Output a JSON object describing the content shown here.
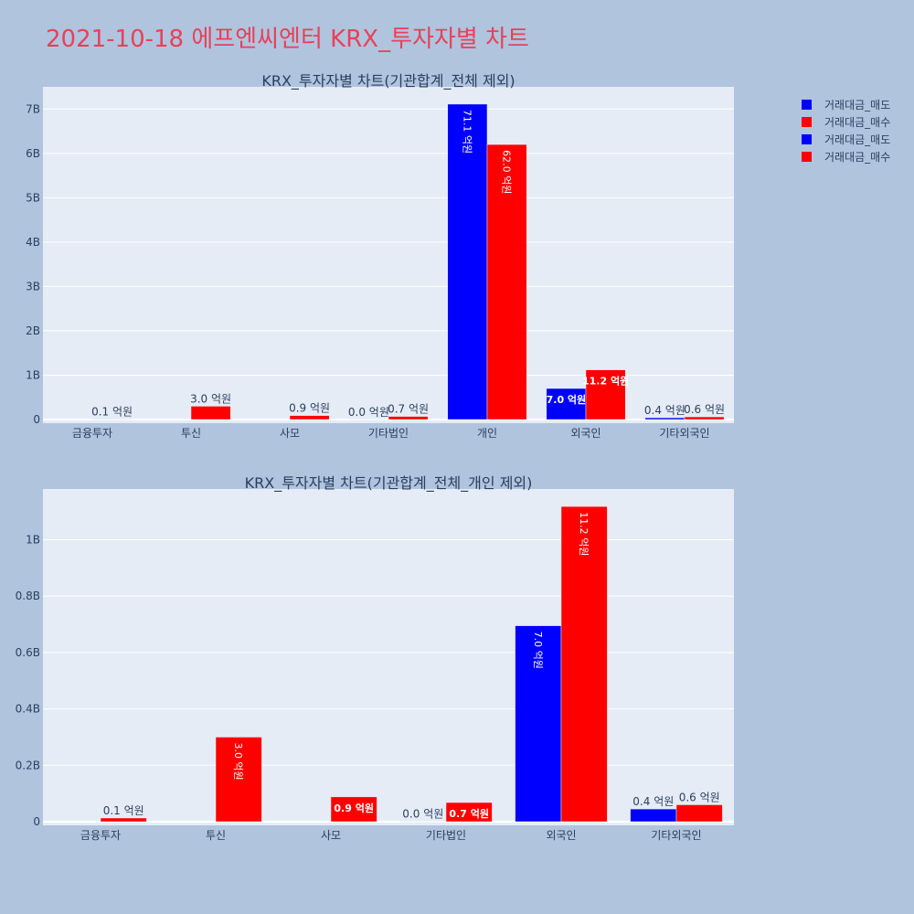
{
  "page": {
    "title": "2021-10-18 에프엔씨엔터 KRX_투자자별 차트",
    "background": "#b0c4de",
    "title_color": "#e8415a"
  },
  "legend": {
    "placement": "right",
    "items": [
      {
        "label": "거래대금_매도",
        "color": "#0000ff"
      },
      {
        "label": "거래대금_매수",
        "color": "#ff0000"
      },
      {
        "label": "거래대금_매도",
        "color": "#0000ff"
      },
      {
        "label": "거래대금_매수",
        "color": "#ff0000"
      }
    ]
  },
  "chart_data": [
    {
      "type": "bar",
      "title": "KRX_투자자별 차트(기관합계_전체 제외)",
      "categories": [
        "금융투자",
        "투신",
        "사모",
        "기타법인",
        "개인",
        "외국인",
        "기타외국인"
      ],
      "series": [
        {
          "name": "거래대금_매도",
          "color": "#0000ff",
          "values": [
            0,
            0,
            0,
            1000000,
            7110000000,
            700000000,
            40000000
          ],
          "labels": [
            "",
            "",
            "",
            "0.0 억원",
            "71.1 억원",
            "7.0 억원",
            "0.4 억원"
          ]
        },
        {
          "name": "거래대금_매수",
          "color": "#ff0000",
          "values": [
            10000000,
            300000000,
            90000000,
            70000000,
            6200000000,
            1120000000,
            60000000
          ],
          "labels": [
            "0.1 억원",
            "3.0 억원",
            "0.9 억원",
            "0.7 억원",
            "62.0 억원",
            "11.2 억원",
            "0.6 억원"
          ]
        }
      ],
      "ylim": [
        0,
        7500000000
      ],
      "yticks": [
        0,
        1000000000,
        2000000000,
        3000000000,
        4000000000,
        5000000000,
        6000000000,
        7000000000
      ],
      "ytick_labels": [
        "0",
        "1B",
        "2B",
        "3B",
        "4B",
        "5B",
        "6B",
        "7B"
      ],
      "grid": true,
      "plot_background": "#e5ecf6"
    },
    {
      "type": "bar",
      "title": "KRX_투자자별 차트(기관합계_전체_개인 제외)",
      "categories": [
        "금융투자",
        "투신",
        "사모",
        "기타법인",
        "외국인",
        "기타외국인"
      ],
      "series": [
        {
          "name": "거래대금_매도",
          "color": "#0000ff",
          "values": [
            0,
            0,
            0,
            1000000,
            695000000,
            45000000
          ],
          "labels": [
            "",
            "",
            "",
            "0.0 억원",
            "7.0 억원",
            "0.4 억원"
          ]
        },
        {
          "name": "거래대금_매수",
          "color": "#ff0000",
          "values": [
            13000000,
            300000000,
            88000000,
            68000000,
            1118000000,
            60000000
          ],
          "labels": [
            "0.1 억원",
            "3.0 억원",
            "0.9 억원",
            "0.7 억원",
            "11.2 억원",
            "0.6 억원"
          ]
        }
      ],
      "ylim": [
        0,
        1180000000
      ],
      "yticks": [
        0,
        200000000,
        400000000,
        600000000,
        800000000,
        1000000000
      ],
      "ytick_labels": [
        "0",
        "0.2B",
        "0.4B",
        "0.6B",
        "0.8B",
        "1B"
      ],
      "grid": true,
      "plot_background": "#e5ecf6"
    }
  ]
}
